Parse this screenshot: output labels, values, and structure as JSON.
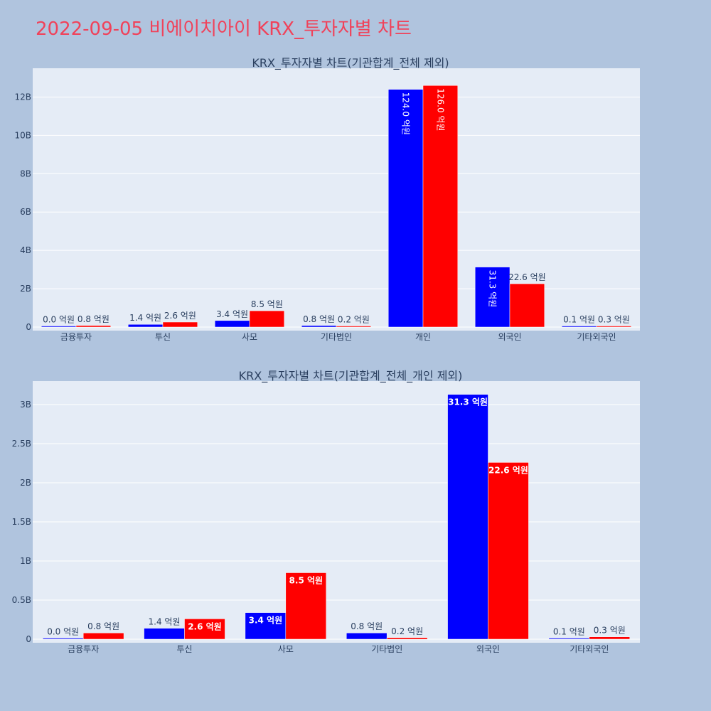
{
  "page_title": "2022-09-05 비에이치아이 KRX_투자자별 차트",
  "colors": {
    "background": "#b0c4de",
    "plot_bg": "#e5ecf6",
    "grid": "#ffffff",
    "series_a": "#0000ff",
    "series_b": "#ff0000",
    "title": "#f0425a",
    "text": "#2a3f5f"
  },
  "chart_data": [
    {
      "type": "bar",
      "title": "KRX_투자자별 차트(기관합계_전체 제외)",
      "categories": [
        "금융투자",
        "투신",
        "사모",
        "기타법인",
        "개인",
        "외국인",
        "기타외국인"
      ],
      "series": [
        {
          "values": [
            0.0,
            0.14,
            0.34,
            0.08,
            12.4,
            3.13,
            0.01
          ],
          "labels": [
            "0.0 억원",
            "1.4 억원",
            "3.4 억원",
            "0.8 억원",
            "124.0 억원",
            "31.3 억원",
            "0.1 억원"
          ]
        },
        {
          "values": [
            0.08,
            0.26,
            0.85,
            0.02,
            12.6,
            2.26,
            0.03
          ],
          "labels": [
            "0.8 억원",
            "2.6 억원",
            "8.5 억원",
            "0.2 억원",
            "126.0 억원",
            "22.6 억원",
            "0.3 억원"
          ]
        }
      ],
      "yticks": [
        0,
        2,
        4,
        6,
        8,
        10,
        12
      ],
      "ytick_labels": [
        "0",
        "2B",
        "4B",
        "6B",
        "8B",
        "10B",
        "12B"
      ],
      "ylim": [
        0,
        13.5
      ],
      "xlabel": "",
      "ylabel": "",
      "grid": true
    },
    {
      "type": "bar",
      "title": "KRX_투자자별 차트(기관합계_전체_개인 제외)",
      "categories": [
        "금융투자",
        "투신",
        "사모",
        "기타법인",
        "외국인",
        "기타외국인"
      ],
      "series": [
        {
          "values": [
            0.0,
            0.14,
            0.34,
            0.08,
            3.13,
            0.01
          ],
          "labels": [
            "0.0 억원",
            "1.4 억원",
            "3.4 억원",
            "0.8 억원",
            "31.3 억원",
            "0.1 억원"
          ]
        },
        {
          "values": [
            0.08,
            0.26,
            0.85,
            0.02,
            2.26,
            0.03
          ],
          "labels": [
            "0.8 억원",
            "2.6 억원",
            "8.5 억원",
            "0.2 억원",
            "22.6 억원",
            "0.3 억원"
          ]
        }
      ],
      "yticks": [
        0,
        0.5,
        1,
        1.5,
        2,
        2.5,
        3
      ],
      "ytick_labels": [
        "0",
        "0.5B",
        "1B",
        "1.5B",
        "2B",
        "2.5B",
        "3B"
      ],
      "ylim": [
        0,
        3.3
      ],
      "xlabel": "",
      "ylabel": "",
      "grid": true
    }
  ]
}
